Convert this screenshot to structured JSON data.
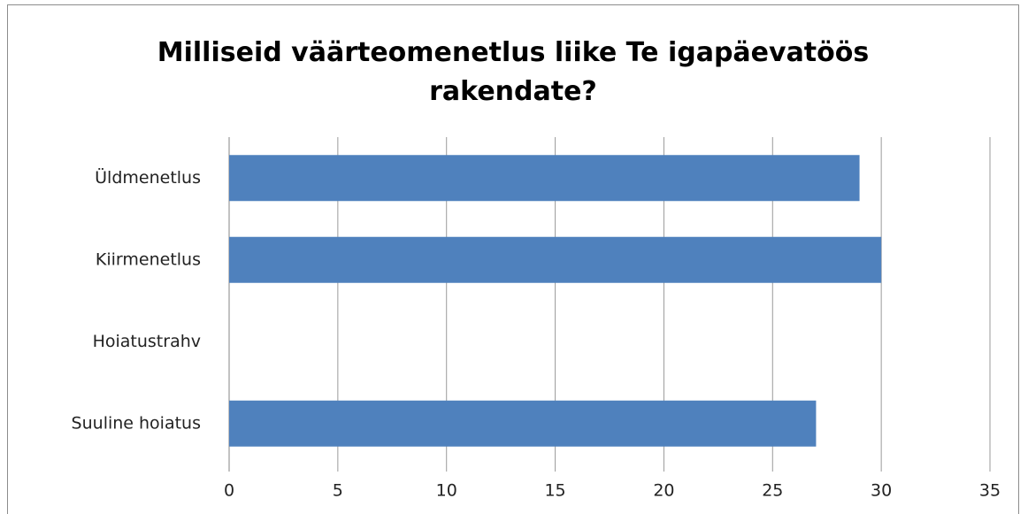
{
  "chart_data": {
    "type": "bar",
    "orientation": "horizontal",
    "title": "Milliseid väärteomenetlus liike Te igapäevatöös rakendate?",
    "categories": [
      "Üldmenetlus",
      "Kiirmenetlus",
      "Hoiatustrahv",
      "Suuline hoiatus"
    ],
    "values": [
      29,
      30,
      0,
      27
    ],
    "color": "#4f81bd",
    "xlim": [
      0,
      35
    ],
    "xticks": [
      0,
      5,
      10,
      15,
      20,
      25,
      30,
      35
    ],
    "grid": true
  }
}
